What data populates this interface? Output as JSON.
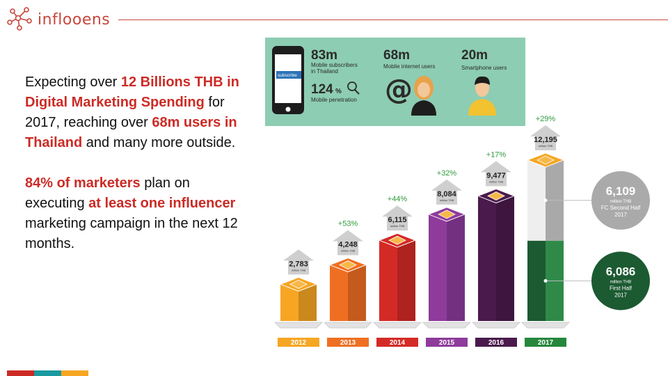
{
  "brand": {
    "name": "inflooens"
  },
  "copy": {
    "p1": [
      {
        "t": "Expecting over ",
        "hl": false
      },
      {
        "t": "12 Billions THB in Digital Marketing Spending",
        "hl": true
      },
      {
        "t": " for 2017, reaching over ",
        "hl": false
      },
      {
        "t": "68m users in Thailand",
        "hl": true
      },
      {
        "t": " and many more outside.",
        "hl": false
      }
    ],
    "p2": [
      {
        "t": "84% of marketers",
        "hl": true
      },
      {
        "t": " plan on executing ",
        "hl": false
      },
      {
        "t": "at least one influencer",
        "hl": true
      },
      {
        "t": " marketing campaign in the next 12 months.",
        "hl": false
      }
    ]
  },
  "stats": {
    "subscribers": {
      "value": "83m",
      "label1": "Mobile subscribers",
      "label2": "in Thailand"
    },
    "penetration": {
      "value": "124",
      "unit": "%",
      "label": "Mobile penetration"
    },
    "internet": {
      "value": "68m",
      "label": "Moblie internet users"
    },
    "smartphone": {
      "value": "20m",
      "label": "Smartphone users"
    },
    "phone_screen_text": "subscribe"
  },
  "chart_data": {
    "type": "bar",
    "categories": [
      "2012",
      "2013",
      "2014",
      "2015",
      "2016",
      "2017"
    ],
    "values": [
      2783,
      4248,
      6115,
      8084,
      9477,
      12195
    ],
    "value_labels": [
      "2,783",
      "4,248",
      "6,115",
      "8,084",
      "9,477",
      "12,195"
    ],
    "unit_label": "million THB",
    "growth_labels": [
      "",
      "+53%",
      "+44%",
      "+32%",
      "+17%",
      "+29%"
    ],
    "colors": [
      "#f6a623",
      "#ef6f22",
      "#d42a26",
      "#8e3b9c",
      "#4a1a4c",
      "#cfcfcf"
    ],
    "label_colors": [
      "#f6a623",
      "#ef6f22",
      "#d42a26",
      "#8e3b9c",
      "#4a1a4c",
      "#25873b"
    ],
    "growth_color": "#2f9a3d",
    "split_2017": [
      {
        "value": 6086,
        "label": "6,086",
        "line1": "million THB",
        "line2": "First Half",
        "line3": "2017",
        "color": "#1c5a32"
      },
      {
        "value": 6109,
        "label": "6,109",
        "line1": "million THB",
        "line2": "FC Second Half",
        "line3": "2017",
        "color": "#aaaaaa"
      }
    ],
    "title": "",
    "xlabel": "",
    "ylabel": ""
  },
  "footer_colors": [
    "#cc2b25",
    "#1a9aa0",
    "#f6a623"
  ]
}
